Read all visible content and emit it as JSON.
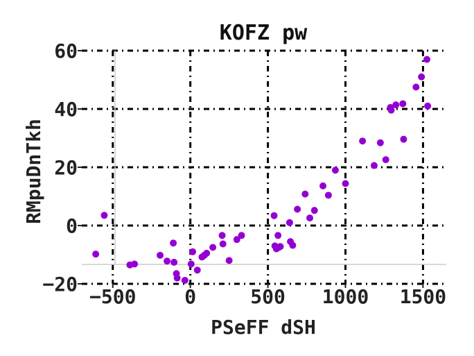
{
  "chart_data": {
    "type": "scatter",
    "title": "KOFZ pw",
    "xlabel": "PSeFF dSH",
    "ylabel": "RMpuDnTkh",
    "xlim": [
      -700,
      1650
    ],
    "ylim": [
      -20,
      60
    ],
    "x_ticks": [
      -500,
      0,
      500,
      1000,
      1500
    ],
    "y_ticks": [
      -20,
      0,
      20,
      40,
      60
    ],
    "x_tick_labels": [
      "−500",
      "0",
      "500",
      "1000",
      "1500"
    ],
    "y_tick_labels": [
      "−20",
      "0",
      "20",
      "40",
      "60"
    ],
    "grid": true,
    "marker_color": "#9400d3",
    "series": [
      {
        "x": [
          -610,
          -555,
          -390,
          -360,
          -195,
          -150,
          -110,
          -105,
          -90,
          -85,
          -35,
          5,
          15,
          45,
          75,
          90,
          105,
          145,
          205,
          210,
          250,
          300,
          330,
          540,
          545,
          555,
          565,
          570,
          580,
          640,
          645,
          660,
          690,
          740,
          770,
          800,
          855,
          890,
          935,
          1000,
          1110,
          1185,
          1225,
          1260,
          1290,
          1295,
          1325,
          1370,
          1375,
          1455,
          1490,
          1525,
          1530
        ],
        "y": [
          -9.8,
          3.5,
          -13.5,
          -13.2,
          -10.2,
          -12.2,
          -6.0,
          -12.6,
          -16.5,
          -18.0,
          -18.8,
          -13.2,
          -9.0,
          -15.3,
          -10.8,
          -10.2,
          -9.5,
          -7.5,
          -3.4,
          -6.3,
          -12.0,
          -4.8,
          -3.4,
          3.4,
          -7.0,
          -8.0,
          -3.4,
          -7.5,
          -7.2,
          1.0,
          -5.5,
          -6.8,
          5.6,
          10.8,
          2.6,
          5.2,
          13.6,
          10.4,
          19.0,
          14.4,
          29.0,
          20.6,
          28.4,
          22.6,
          40.5,
          39.6,
          41.4,
          41.8,
          29.6,
          47.5,
          51.0,
          57.0,
          41.0
        ]
      }
    ]
  }
}
